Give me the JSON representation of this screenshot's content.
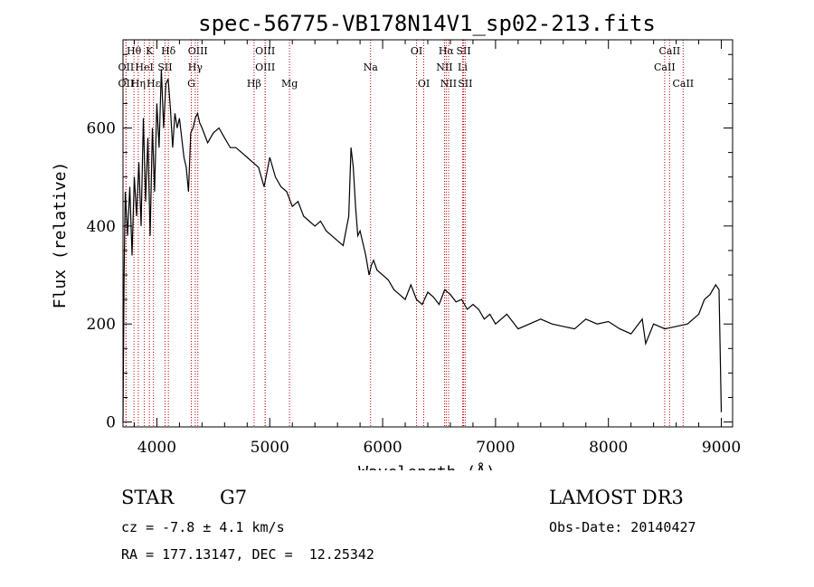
{
  "title": "spec-56775-VB178N14V1_sp02-213.fits",
  "chart_data": {
    "type": "line",
    "title": "spec-56775-VB178N14V1_sp02-213.fits",
    "xlabel": "Wavelength (Å)",
    "ylabel": "Flux (relative)",
    "xlim": [
      3700,
      9100
    ],
    "ylim": [
      -10,
      780
    ],
    "xticks": [
      4000,
      5000,
      6000,
      7000,
      8000,
      9000
    ],
    "yticks": [
      0,
      200,
      400,
      600
    ],
    "series": [
      {
        "name": "flux",
        "x": [
          3700,
          3710,
          3720,
          3740,
          3760,
          3780,
          3800,
          3820,
          3840,
          3860,
          3880,
          3900,
          3920,
          3940,
          3960,
          3980,
          4000,
          4020,
          4040,
          4060,
          4080,
          4100,
          4120,
          4140,
          4160,
          4180,
          4200,
          4220,
          4240,
          4260,
          4280,
          4300,
          4320,
          4340,
          4360,
          4380,
          4400,
          4450,
          4500,
          4550,
          4600,
          4650,
          4700,
          4750,
          4800,
          4850,
          4900,
          4950,
          5000,
          5050,
          5100,
          5150,
          5200,
          5250,
          5300,
          5350,
          5400,
          5450,
          5500,
          5550,
          5600,
          5650,
          5700,
          5720,
          5740,
          5760,
          5780,
          5800,
          5850,
          5880,
          5900,
          5920,
          5950,
          6000,
          6050,
          6100,
          6150,
          6200,
          6250,
          6300,
          6350,
          6400,
          6450,
          6500,
          6550,
          6600,
          6650,
          6700,
          6750,
          6800,
          6850,
          6900,
          6950,
          7000,
          7100,
          7200,
          7300,
          7400,
          7500,
          7600,
          7700,
          7800,
          7900,
          8000,
          8100,
          8200,
          8300,
          8330,
          8400,
          8500,
          8600,
          8700,
          8800,
          8850,
          8900,
          8950,
          8980,
          9000
        ],
        "y": [
          0,
          300,
          470,
          380,
          480,
          340,
          500,
          420,
          530,
          400,
          620,
          450,
          580,
          380,
          600,
          470,
          650,
          560,
          720,
          600,
          690,
          700,
          640,
          560,
          630,
          600,
          620,
          580,
          540,
          520,
          470,
          590,
          600,
          620,
          630,
          610,
          600,
          570,
          590,
          600,
          580,
          560,
          560,
          550,
          540,
          530,
          520,
          480,
          540,
          500,
          480,
          470,
          440,
          450,
          420,
          410,
          400,
          410,
          390,
          380,
          370,
          360,
          420,
          560,
          520,
          440,
          380,
          390,
          340,
          300,
          320,
          330,
          310,
          300,
          290,
          270,
          260,
          250,
          280,
          250,
          240,
          265,
          255,
          240,
          270,
          260,
          245,
          250,
          230,
          240,
          230,
          210,
          220,
          200,
          220,
          190,
          200,
          210,
          200,
          195,
          190,
          210,
          200,
          205,
          190,
          180,
          210,
          160,
          200,
          190,
          195,
          200,
          220,
          250,
          260,
          280,
          270,
          20
        ]
      }
    ],
    "spectral_lines": [
      {
        "label": "Hθ",
        "x": 3797,
        "row": 1
      },
      {
        "label": "OII",
        "x": 3727,
        "row": 2
      },
      {
        "label": "OII",
        "x": 3727,
        "row": 3
      },
      {
        "label": "HeI",
        "x": 3889,
        "row": 2
      },
      {
        "label": "Hη",
        "x": 3835,
        "row": 3
      },
      {
        "label": "Hε",
        "x": 3970,
        "row": 3
      },
      {
        "label": "K",
        "x": 3934,
        "row": 1
      },
      {
        "label": "SII",
        "x": 4072,
        "row": 2
      },
      {
        "label": "Hδ",
        "x": 4102,
        "row": 1
      },
      {
        "label": "OIII",
        "x": 4363,
        "row": 1
      },
      {
        "label": "Hγ",
        "x": 4340,
        "row": 2
      },
      {
        "label": "G",
        "x": 4305,
        "row": 3
      },
      {
        "label": "Hβ",
        "x": 4861,
        "row": 3
      },
      {
        "label": "OIII",
        "x": 4959,
        "row": 1
      },
      {
        "label": "OIII",
        "x": 4959,
        "row": 2
      },
      {
        "label": "Mg",
        "x": 5175,
        "row": 3
      },
      {
        "label": "Na",
        "x": 5893,
        "row": 2
      },
      {
        "label": "OI",
        "x": 6300,
        "row": 1
      },
      {
        "label": "OI",
        "x": 6364,
        "row": 3
      },
      {
        "label": "Hα",
        "x": 6563,
        "row": 1
      },
      {
        "label": "NII",
        "x": 6548,
        "row": 2
      },
      {
        "label": "NII",
        "x": 6584,
        "row": 3
      },
      {
        "label": "SII",
        "x": 6717,
        "row": 1
      },
      {
        "label": "Li",
        "x": 6708,
        "row": 2
      },
      {
        "label": "SII",
        "x": 6731,
        "row": 3
      },
      {
        "label": "CaII",
        "x": 8542,
        "row": 1
      },
      {
        "label": "CaII",
        "x": 8498,
        "row": 2
      },
      {
        "label": "CaII",
        "x": 8662,
        "row": 3
      }
    ]
  },
  "info": {
    "object_class": "STAR",
    "subclass": "G7",
    "survey": "LAMOST DR3",
    "cz": "cz = -7.8 ± 4.1 km/s",
    "obs_date": "Obs-Date: 20140427",
    "coords": "RA = 177.13147, DEC =  12.25342"
  }
}
